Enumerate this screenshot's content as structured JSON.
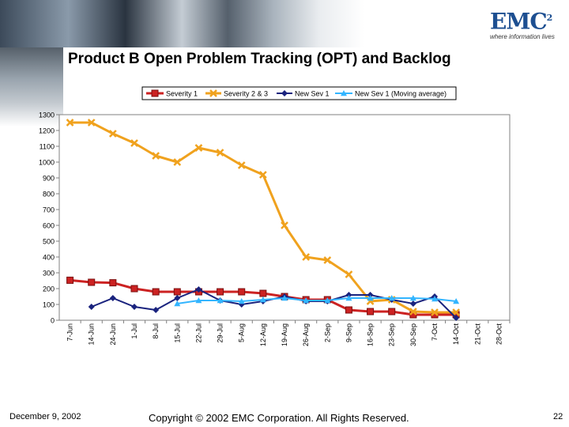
{
  "slide": {
    "title": "Product B Open Problem Tracking (OPT) and Backlog",
    "logo_text": "EMC",
    "logo_superscript": "2",
    "logo_tagline": "where information lives",
    "date": "December 9, 2002",
    "copyright": "Copyright © 2002 EMC Corporation. All Rights Reserved.",
    "page_number": "22"
  },
  "colors": {
    "sev1": "#cc2222",
    "sev1_border": "#7a0f0f",
    "sev23": "#f0a21e",
    "newsev1": "#1a237e",
    "moving_avg": "#33b5ff"
  },
  "chart_data": {
    "type": "line",
    "title": "",
    "xlabel": "",
    "ylabel": "",
    "ylim": [
      0,
      1300
    ],
    "yticks": [
      0,
      100,
      200,
      300,
      400,
      500,
      600,
      700,
      800,
      900,
      1000,
      1100,
      1200,
      1300
    ],
    "grid": false,
    "legend_position": "top-right",
    "categories": [
      "7-Jun",
      "14-Jun",
      "24-Jun",
      "1-Jul",
      "8-Jul",
      "15-Jul",
      "22-Jul",
      "29-Jul",
      "5-Aug",
      "12-Aug",
      "19-Aug",
      "26-Aug",
      "2-Sep",
      "9-Sep",
      "16-Sep",
      "23-Sep",
      "30-Sep",
      "7-Oct",
      "14-Oct",
      "21-Oct",
      "28-Oct"
    ],
    "series": [
      {
        "name": "Severity 1",
        "marker": "square",
        "values": [
          253,
          240,
          237,
          200,
          180,
          180,
          180,
          180,
          180,
          170,
          150,
          130,
          130,
          65,
          55,
          55,
          35,
          35,
          35,
          null,
          null
        ]
      },
      {
        "name": "Severity 2 & 3",
        "marker": "x",
        "values": [
          1250,
          1250,
          1180,
          1120,
          1040,
          1000,
          1090,
          1060,
          980,
          920,
          600,
          400,
          380,
          290,
          120,
          130,
          55,
          50,
          50,
          null,
          null
        ]
      },
      {
        "name": "New Sev 1",
        "marker": "diamond",
        "values": [
          null,
          85,
          140,
          85,
          65,
          140,
          195,
          125,
          100,
          120,
          150,
          120,
          120,
          160,
          160,
          130,
          105,
          150,
          15,
          null,
          null
        ]
      },
      {
        "name": "New Sev 1 (Moving average)",
        "marker": "triangle",
        "values": [
          null,
          null,
          null,
          null,
          null,
          105,
          125,
          125,
          120,
          130,
          140,
          125,
          125,
          140,
          140,
          140,
          140,
          135,
          120,
          null,
          null
        ]
      }
    ]
  }
}
